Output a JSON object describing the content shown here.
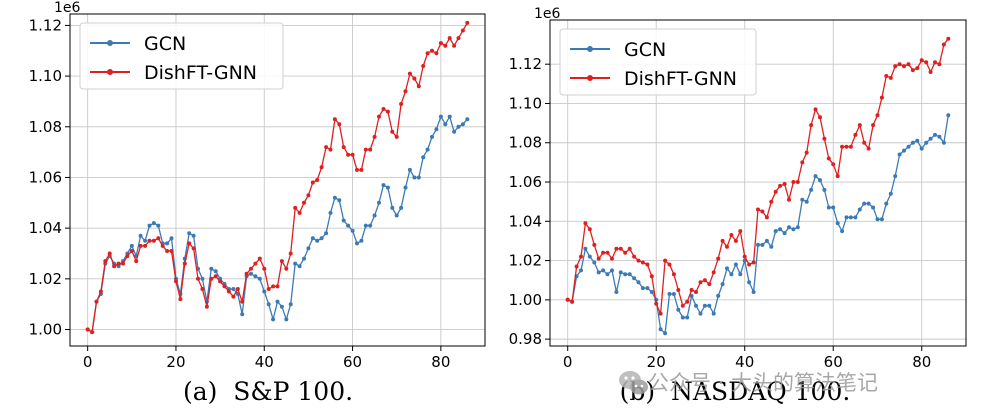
{
  "colors": {
    "gcn": "#3c7ab7",
    "dishft": "#df2020",
    "grid": "#c8c8c8",
    "axis": "#000000"
  },
  "watermark": {
    "text": "公众号 · 大头的算法笔记",
    "icon": "wechat-icon"
  },
  "chart_data": [
    {
      "type": "line",
      "caption": "(a)  S&P 100.",
      "sci_label": "1e6",
      "xlim": [
        -4,
        90
      ],
      "ylim": [
        0.9935,
        1.1245
      ],
      "xticks": [
        0,
        20,
        40,
        60,
        80
      ],
      "xtick_labels": [
        "0",
        "20",
        "40",
        "60",
        "80"
      ],
      "yticks": [
        1.0,
        1.02,
        1.04,
        1.06,
        1.08,
        1.1,
        1.12
      ],
      "ytick_labels": [
        "1.00",
        "1.02",
        "1.04",
        "1.06",
        "1.08",
        "1.10",
        "1.12"
      ],
      "grid": true,
      "legend": "top-left",
      "series": [
        {
          "name": "GCN",
          "color": "#3c7ab7",
          "x": [
            0,
            1,
            2,
            3,
            4,
            5,
            6,
            7,
            8,
            9,
            10,
            11,
            12,
            13,
            14,
            15,
            16,
            17,
            18,
            19,
            20,
            21,
            22,
            23,
            24,
            25,
            26,
            27,
            28,
            29,
            30,
            31,
            32,
            33,
            34,
            35,
            36,
            37,
            38,
            39,
            40,
            41,
            42,
            43,
            44,
            45,
            46,
            47,
            48,
            49,
            50,
            51,
            52,
            53,
            54,
            55,
            56,
            57,
            58,
            59,
            60,
            61,
            62,
            63,
            64,
            65,
            66,
            67,
            68,
            69,
            70,
            71,
            72,
            73,
            74,
            75,
            76,
            77,
            78,
            79,
            80,
            81,
            82,
            83,
            84,
            85,
            86
          ],
          "values": [
            1.0,
            0.999,
            1.011,
            1.014,
            1.026,
            1.029,
            1.026,
            1.025,
            1.027,
            1.03,
            1.033,
            1.029,
            1.037,
            1.035,
            1.041,
            1.042,
            1.041,
            1.034,
            1.034,
            1.036,
            1.02,
            1.014,
            1.028,
            1.038,
            1.037,
            1.024,
            1.02,
            1.011,
            1.024,
            1.023,
            1.02,
            1.018,
            1.016,
            1.016,
            1.014,
            1.006,
            1.021,
            1.022,
            1.021,
            1.02,
            1.015,
            1.01,
            1.004,
            1.011,
            1.009,
            1.004,
            1.01,
            1.026,
            1.025,
            1.028,
            1.032,
            1.036,
            1.035,
            1.036,
            1.038,
            1.046,
            1.052,
            1.051,
            1.043,
            1.041,
            1.039,
            1.034,
            1.035,
            1.041,
            1.041,
            1.045,
            1.05,
            1.057,
            1.056,
            1.048,
            1.045,
            1.048,
            1.056,
            1.063,
            1.06,
            1.06,
            1.068,
            1.071,
            1.076,
            1.079,
            1.084,
            1.081,
            1.084,
            1.078,
            1.08,
            1.081,
            1.083
          ]
        },
        {
          "name": "DishFT-GNN",
          "color": "#df2020",
          "x": [
            0,
            1,
            2,
            3,
            4,
            5,
            6,
            7,
            8,
            9,
            10,
            11,
            12,
            13,
            14,
            15,
            16,
            17,
            18,
            19,
            20,
            21,
            22,
            23,
            24,
            25,
            26,
            27,
            28,
            29,
            30,
            31,
            32,
            33,
            34,
            35,
            36,
            37,
            38,
            39,
            40,
            41,
            42,
            43,
            44,
            45,
            46,
            47,
            48,
            49,
            50,
            51,
            52,
            53,
            54,
            55,
            56,
            57,
            58,
            59,
            60,
            61,
            62,
            63,
            64,
            65,
            66,
            67,
            68,
            69,
            70,
            71,
            72,
            73,
            74,
            75,
            76,
            77,
            78,
            79,
            80,
            81,
            82,
            83,
            84,
            85,
            86
          ],
          "values": [
            1.0,
            0.999,
            1.011,
            1.015,
            1.027,
            1.03,
            1.025,
            1.026,
            1.026,
            1.029,
            1.031,
            1.027,
            1.033,
            1.033,
            1.035,
            1.035,
            1.036,
            1.033,
            1.031,
            1.031,
            1.019,
            1.012,
            1.026,
            1.034,
            1.032,
            1.02,
            1.016,
            1.009,
            1.02,
            1.021,
            1.019,
            1.017,
            1.015,
            1.013,
            1.016,
            1.011,
            1.022,
            1.024,
            1.026,
            1.028,
            1.024,
            1.016,
            1.017,
            1.017,
            1.027,
            1.024,
            1.03,
            1.048,
            1.046,
            1.05,
            1.053,
            1.058,
            1.059,
            1.064,
            1.072,
            1.071,
            1.083,
            1.081,
            1.072,
            1.069,
            1.069,
            1.063,
            1.063,
            1.071,
            1.071,
            1.076,
            1.084,
            1.087,
            1.086,
            1.078,
            1.076,
            1.089,
            1.094,
            1.101,
            1.099,
            1.096,
            1.104,
            1.109,
            1.11,
            1.109,
            1.113,
            1.112,
            1.115,
            1.112,
            1.115,
            1.118,
            1.121
          ]
        }
      ]
    },
    {
      "type": "line",
      "caption": "(b)  NASDAQ 100.",
      "sci_label": "1e6",
      "xlim": [
        -4,
        90
      ],
      "ylim": [
        0.9765,
        1.1425
      ],
      "xticks": [
        0,
        20,
        40,
        60,
        80
      ],
      "xtick_labels": [
        "0",
        "20",
        "40",
        "60",
        "80"
      ],
      "yticks": [
        0.98,
        1.0,
        1.02,
        1.04,
        1.06,
        1.08,
        1.1,
        1.12
      ],
      "ytick_labels": [
        "0.98",
        "1.00",
        "1.02",
        "1.04",
        "1.06",
        "1.08",
        "1.10",
        "1.12"
      ],
      "grid": true,
      "legend": "top-left",
      "series": [
        {
          "name": "GCN",
          "color": "#3c7ab7",
          "x": [
            0,
            1,
            2,
            3,
            4,
            5,
            6,
            7,
            8,
            9,
            10,
            11,
            12,
            13,
            14,
            15,
            16,
            17,
            18,
            19,
            20,
            21,
            22,
            23,
            24,
            25,
            26,
            27,
            28,
            29,
            30,
            31,
            32,
            33,
            34,
            35,
            36,
            37,
            38,
            39,
            40,
            41,
            42,
            43,
            44,
            45,
            46,
            47,
            48,
            49,
            50,
            51,
            52,
            53,
            54,
            55,
            56,
            57,
            58,
            59,
            60,
            61,
            62,
            63,
            64,
            65,
            66,
            67,
            68,
            69,
            70,
            71,
            72,
            73,
            74,
            75,
            76,
            77,
            78,
            79,
            80,
            81,
            82,
            83,
            84,
            85,
            86
          ],
          "values": [
            1.0,
            0.999,
            1.012,
            1.015,
            1.026,
            1.022,
            1.019,
            1.014,
            1.015,
            1.013,
            1.015,
            1.004,
            1.014,
            1.013,
            1.013,
            1.011,
            1.009,
            1.006,
            1.006,
            1.004,
            1.0,
            0.985,
            0.983,
            1.003,
            1.003,
            0.995,
            0.991,
            0.991,
            1.002,
            0.997,
            0.993,
            0.997,
            0.997,
            0.993,
            1.002,
            1.008,
            1.016,
            1.013,
            1.018,
            1.013,
            1.02,
            1.009,
            1.004,
            1.028,
            1.028,
            1.03,
            1.027,
            1.035,
            1.036,
            1.034,
            1.037,
            1.036,
            1.037,
            1.051,
            1.05,
            1.056,
            1.063,
            1.061,
            1.056,
            1.047,
            1.047,
            1.039,
            1.035,
            1.042,
            1.042,
            1.042,
            1.046,
            1.049,
            1.049,
            1.047,
            1.041,
            1.041,
            1.049,
            1.054,
            1.063,
            1.074,
            1.076,
            1.078,
            1.08,
            1.081,
            1.077,
            1.08,
            1.082,
            1.084,
            1.083,
            1.08,
            1.094
          ]
        },
        {
          "name": "DishFT-GNN",
          "color": "#df2020",
          "x": [
            0,
            1,
            2,
            3,
            4,
            5,
            6,
            7,
            8,
            9,
            10,
            11,
            12,
            13,
            14,
            15,
            16,
            17,
            18,
            19,
            20,
            21,
            22,
            23,
            24,
            25,
            26,
            27,
            28,
            29,
            30,
            31,
            32,
            33,
            34,
            35,
            36,
            37,
            38,
            39,
            40,
            41,
            42,
            43,
            44,
            45,
            46,
            47,
            48,
            49,
            50,
            51,
            52,
            53,
            54,
            55,
            56,
            57,
            58,
            59,
            60,
            61,
            62,
            63,
            64,
            65,
            66,
            67,
            68,
            69,
            70,
            71,
            72,
            73,
            74,
            75,
            76,
            77,
            78,
            79,
            80,
            81,
            82,
            83,
            84,
            85,
            86
          ],
          "values": [
            1.0,
            0.999,
            1.017,
            1.022,
            1.039,
            1.036,
            1.028,
            1.021,
            1.024,
            1.024,
            1.021,
            1.026,
            1.026,
            1.024,
            1.026,
            1.022,
            1.02,
            1.019,
            1.018,
            1.012,
            0.998,
            0.993,
            1.02,
            1.018,
            1.013,
            1.005,
            0.997,
            0.999,
            1.005,
            1.004,
            1.009,
            1.01,
            1.008,
            1.014,
            1.021,
            1.03,
            1.027,
            1.033,
            1.03,
            1.035,
            1.022,
            1.018,
            1.019,
            1.046,
            1.045,
            1.042,
            1.05,
            1.055,
            1.058,
            1.059,
            1.051,
            1.06,
            1.06,
            1.07,
            1.075,
            1.089,
            1.097,
            1.093,
            1.082,
            1.072,
            1.069,
            1.063,
            1.078,
            1.078,
            1.078,
            1.084,
            1.089,
            1.08,
            1.077,
            1.089,
            1.094,
            1.103,
            1.114,
            1.113,
            1.119,
            1.12,
            1.119,
            1.12,
            1.117,
            1.118,
            1.122,
            1.121,
            1.116,
            1.121,
            1.12,
            1.13,
            1.133
          ]
        }
      ]
    }
  ]
}
